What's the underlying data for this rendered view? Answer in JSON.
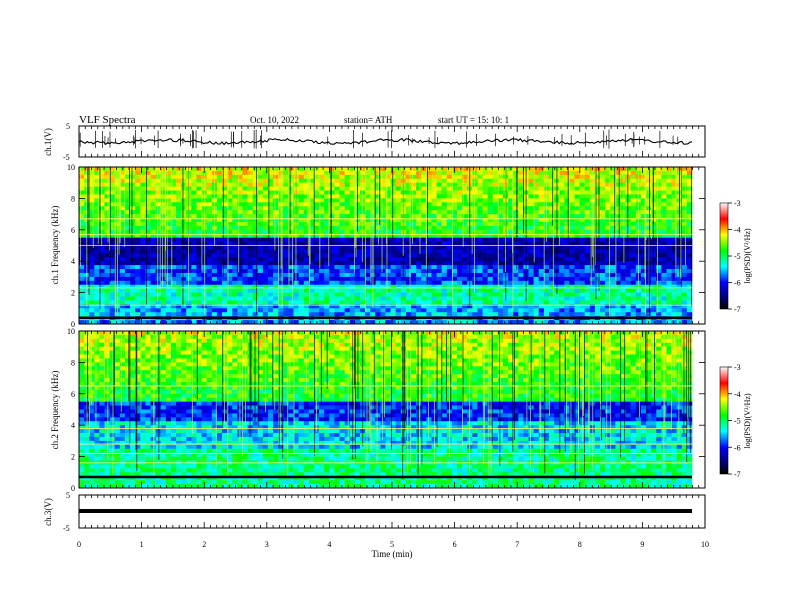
{
  "header": {
    "title": "VLF  Spectra",
    "date": "Oct. 10, 2022",
    "station": "station= ATH",
    "start": "start  UT  =    15: 10: 1"
  },
  "chart_data": [
    {
      "type": "line",
      "name": "ch1-waveform",
      "ylabel": "ch.1(V)",
      "ylim": [
        -5,
        5
      ],
      "y_ticks": [
        "5",
        "-5"
      ],
      "xlim": [
        0,
        10
      ],
      "color": "#000000"
    },
    {
      "type": "heatmap",
      "name": "ch1-spectrogram",
      "ylabel": "ch.1 Frequency (kHz)",
      "ylim": [
        0,
        10
      ],
      "y_ticks": [
        "10",
        "8",
        "6",
        "4",
        "2",
        "0"
      ],
      "colorbar": {
        "label": "log(PSD)(V²/Hz)",
        "range": [
          -7,
          -3
        ],
        "ticks": [
          "-3",
          "-4",
          "-5",
          "-6",
          "-7"
        ],
        "colors": [
          "#000000",
          "#0000ff",
          "#00ffff",
          "#00ff00",
          "#ffff00",
          "#ff0000",
          "#ffffff"
        ]
      }
    },
    {
      "type": "heatmap",
      "name": "ch2-spectrogram",
      "ylabel": "ch.2 Frequency (kHz)",
      "ylim": [
        0,
        10
      ],
      "y_ticks": [
        "10",
        "8",
        "6",
        "4",
        "2",
        "0"
      ],
      "colorbar": {
        "label": "log(PSD)(V²/Hz)",
        "range": [
          -7,
          -3
        ],
        "ticks": [
          "-3",
          "-4",
          "-5",
          "-6",
          "-7"
        ],
        "colors": [
          "#000000",
          "#0000ff",
          "#00ffff",
          "#00ff00",
          "#ffff00",
          "#ff0000",
          "#ffffff"
        ]
      }
    },
    {
      "type": "line",
      "name": "ch3-waveform",
      "ylabel": "ch.3(V)",
      "ylim": [
        -5,
        5
      ],
      "y_ticks": [
        "5",
        "-5"
      ],
      "xlim": [
        0,
        10
      ],
      "color": "#000000"
    }
  ],
  "x_axis": {
    "label": "Time  (min)",
    "range": [
      0,
      10
    ],
    "ticks": [
      "0",
      "1",
      "2",
      "3",
      "4",
      "5",
      "6",
      "7",
      "8",
      "9",
      "10"
    ]
  }
}
